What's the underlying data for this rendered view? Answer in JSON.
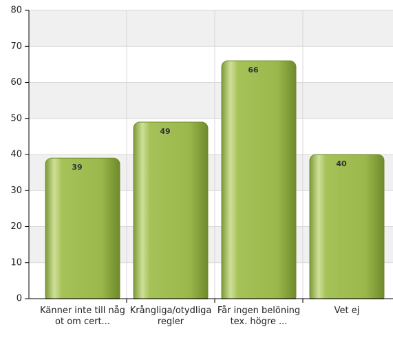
{
  "chart_data": {
    "type": "bar",
    "categories": [
      "Känner inte till något om cert...",
      "Krångliga/otydliga regler",
      "Får ingen belöning tex. högre ...",
      "Vet ej"
    ],
    "values": [
      39,
      49,
      66,
      40
    ],
    "color": "#94b044",
    "ylim": [
      0,
      80
    ],
    "yticks": [
      0,
      10,
      20,
      30,
      40,
      50,
      60,
      70,
      80
    ],
    "grid": true
  }
}
